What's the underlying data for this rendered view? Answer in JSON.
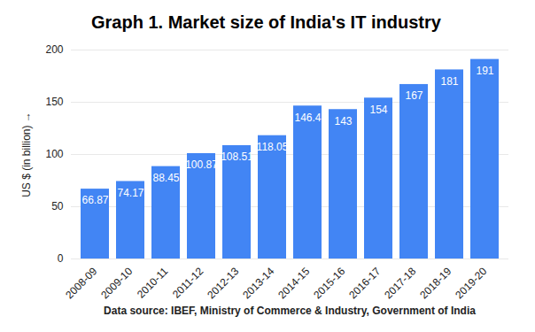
{
  "chart_data": {
    "type": "bar",
    "title": "Graph 1. Market size of India's IT industry",
    "y_label": "US $ (in billion) →",
    "caption": "Data source: IBEF, Ministry of Commerce & Industry, Government of India",
    "categories": [
      "2008-09",
      "2009-10",
      "2010-11",
      "2011-12",
      "2012-13",
      "2013-14",
      "2014-15",
      "2015-16",
      "2016-17",
      "2017-18",
      "2018-19",
      "2019-20"
    ],
    "values": [
      66.87,
      74.17,
      88.45,
      100.87,
      108.51,
      118.05,
      146.4,
      143,
      154,
      167,
      181,
      191
    ],
    "color": "#4285f4",
    "ylim": [
      0,
      200
    ],
    "yticks": [
      0,
      50,
      100,
      150,
      200
    ],
    "grid": true,
    "data_labels": true
  }
}
